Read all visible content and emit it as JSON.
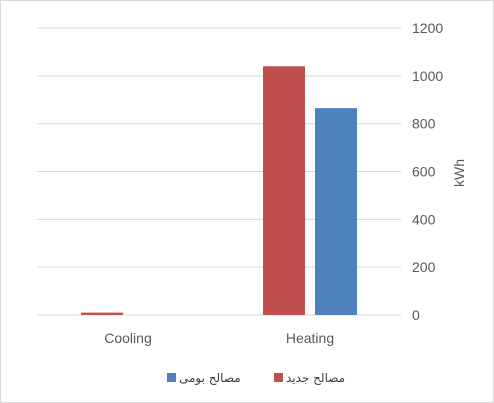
{
  "chart_data": {
    "type": "bar",
    "categories": [
      "Cooling",
      "Heating"
    ],
    "series": [
      {
        "name": "مصالح جدید",
        "color": "#C0504D",
        "values": [
          10,
          1040
        ]
      },
      {
        "name": "مصالح بومی",
        "color": "#4F81BD",
        "values": [
          0,
          865
        ]
      }
    ],
    "title": "",
    "xlabel": "",
    "ylabel": "kWh",
    "ylim": [
      0,
      1200
    ],
    "yticks": [
      0,
      200,
      400,
      600,
      800,
      1000,
      1200
    ],
    "y_axis_side": "right",
    "grid": true,
    "legend_position": "bottom"
  }
}
